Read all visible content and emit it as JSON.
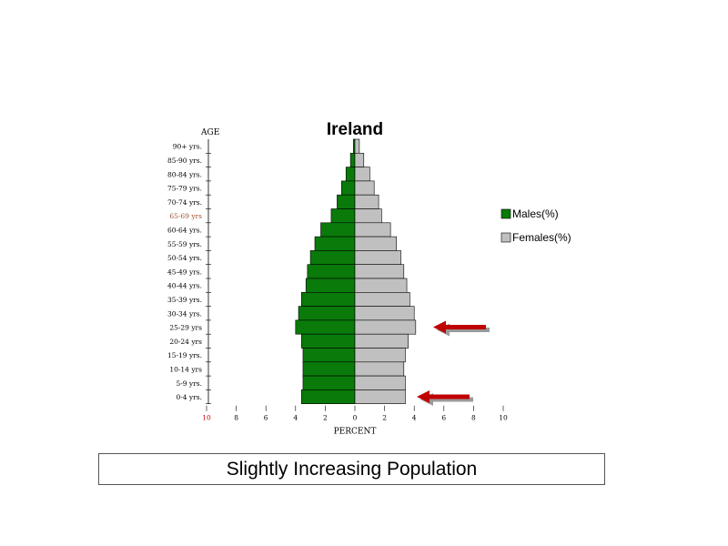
{
  "chart_data": {
    "type": "bar",
    "orientation": "horizontal-population-pyramid",
    "title": "Ireland",
    "age_axis_label": "AGE",
    "xlabel": "PERCENT",
    "categories": [
      "90+ yrs.",
      "85-90 yrs.",
      "80-84 yrs.",
      "75-79 yrs.",
      "70-74 yrs.",
      "65-69 yrs",
      "60-64 yrs.",
      "55-59 yrs.",
      "50-54 yrs.",
      "45-49 yrs.",
      "40-44 yrs.",
      "35-39 yrs.",
      "30-34 yrs.",
      "25-29 yrs",
      "20-24 yrs",
      "15-19 yrs.",
      "10-14 yrs",
      "5-9 yrs.",
      "0-4 yrs."
    ],
    "series": [
      {
        "name": "Males(%)",
        "color": "#0a7a0a",
        "values": [
          0.1,
          0.3,
          0.6,
          0.9,
          1.2,
          1.6,
          2.3,
          2.7,
          3.0,
          3.2,
          3.3,
          3.6,
          3.8,
          4.0,
          3.6,
          3.5,
          3.5,
          3.5,
          3.6
        ]
      },
      {
        "name": "Females(%)",
        "color": "#c0c0c0",
        "values": [
          0.3,
          0.6,
          1.0,
          1.3,
          1.6,
          1.8,
          2.4,
          2.8,
          3.1,
          3.3,
          3.5,
          3.7,
          4.0,
          4.1,
          3.6,
          3.4,
          3.3,
          3.4,
          3.4
        ]
      }
    ],
    "x_ticks": [
      "10",
      "8",
      "6",
      "4",
      "2",
      "0",
      "2",
      "4",
      "6",
      "8",
      "10"
    ],
    "xlim": [
      -10,
      10
    ],
    "legend_position": "right",
    "annotations": [
      {
        "type": "arrow",
        "points_to": "25-29 yrs",
        "color": "#c00000"
      },
      {
        "type": "arrow",
        "points_to": "0-4 yrs.",
        "color": "#c00000"
      }
    ],
    "grid": false
  },
  "caption": "Slightly Increasing Population"
}
